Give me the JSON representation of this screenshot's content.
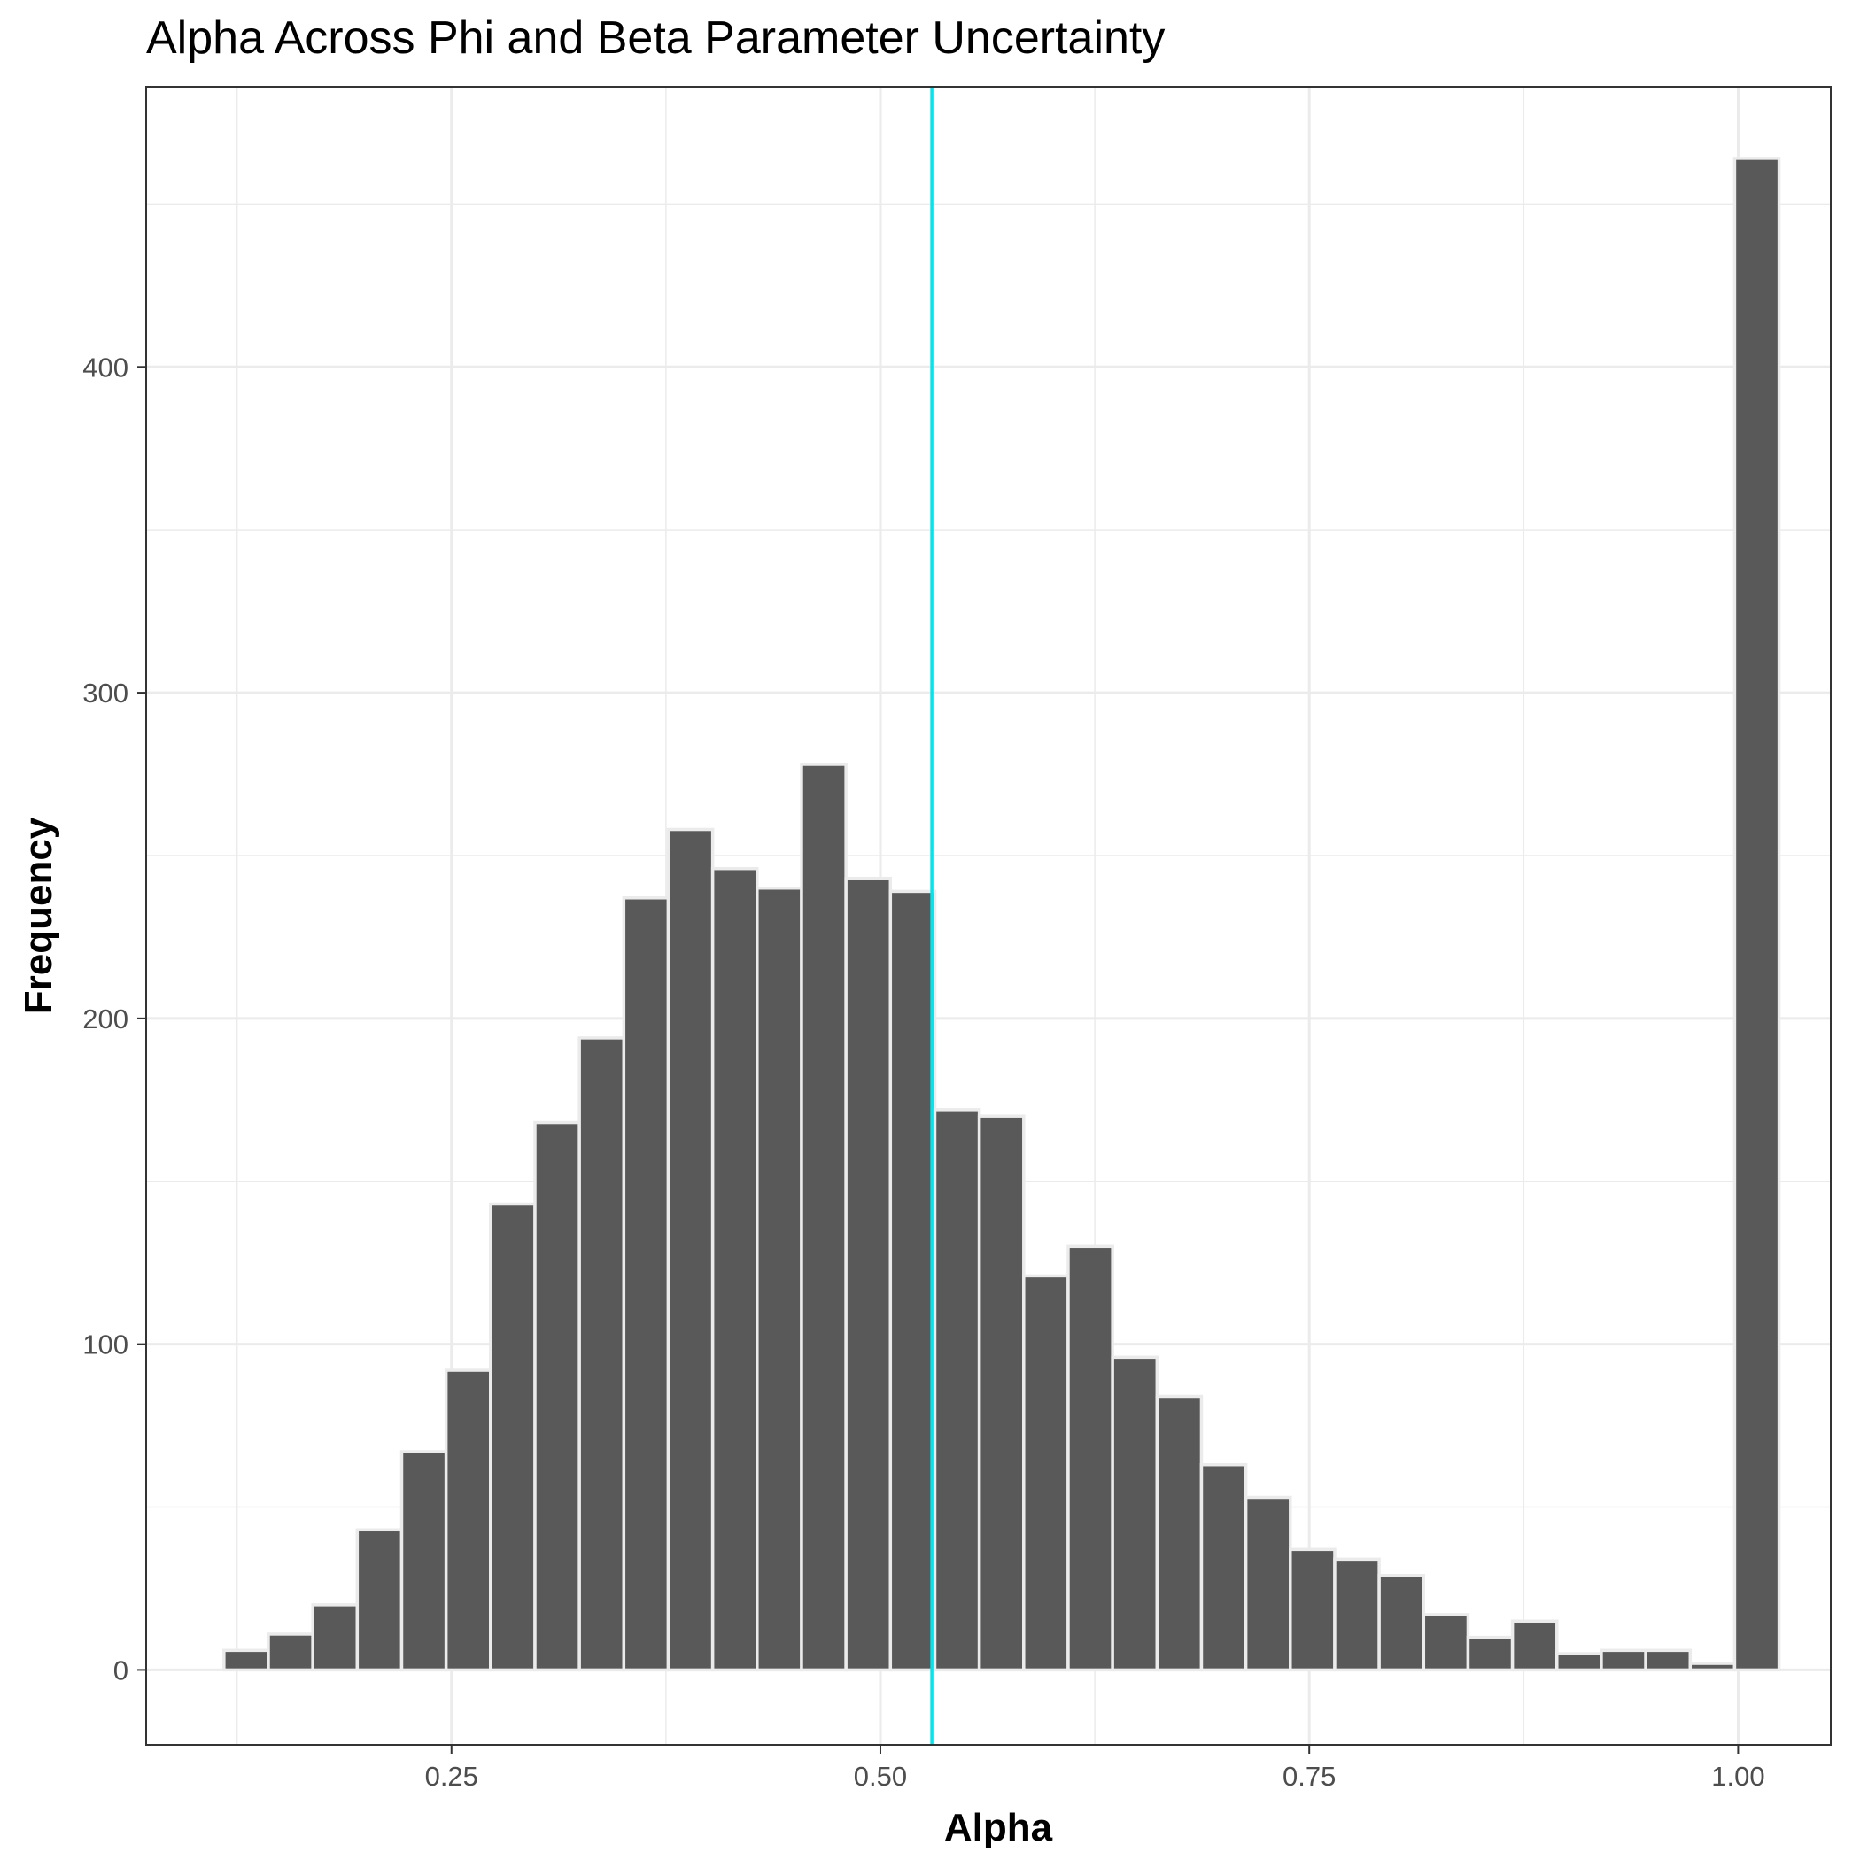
{
  "chart_data": {
    "type": "bar",
    "title": "Alpha Across Phi and Beta Parameter Uncertainty",
    "xlabel": "Alpha",
    "ylabel": "Frequency",
    "xlim": [
      0.072,
      1.054
    ],
    "ylim": [
      -23,
      486
    ],
    "x_ticks": [
      0.25,
      0.5,
      0.75,
      1.0
    ],
    "x_tick_labels": [
      "0.25",
      "0.50",
      "0.75",
      "1.00"
    ],
    "y_ticks": [
      0,
      100,
      200,
      300,
      400
    ],
    "y_tick_labels": [
      "0",
      "100",
      "200",
      "300",
      "400"
    ],
    "grid": true,
    "legend": "none",
    "bin_width": 0.0259,
    "bin_centers": [
      0.1303,
      0.1562,
      0.1821,
      0.208,
      0.2339,
      0.2598,
      0.2857,
      0.3116,
      0.3375,
      0.3634,
      0.3893,
      0.4152,
      0.4411,
      0.467,
      0.4929,
      0.5188,
      0.5447,
      0.5706,
      0.5965,
      0.6224,
      0.6483,
      0.6742,
      0.7001,
      0.726,
      0.7519,
      0.7778,
      0.8037,
      0.8296,
      0.8555,
      0.8814,
      0.9073,
      0.9332,
      0.9591,
      0.985,
      1.0109
    ],
    "values": [
      6,
      11,
      20,
      43,
      67,
      92,
      143,
      168,
      194,
      237,
      258,
      246,
      240,
      278,
      243,
      239,
      172,
      170,
      121,
      130,
      96,
      84,
      63,
      53,
      37,
      34,
      29,
      17,
      10,
      15,
      5,
      6,
      6,
      2,
      464
    ],
    "reference_line": {
      "x": 0.53,
      "color": "#00e5ee"
    },
    "colors": {
      "bar_fill": "#595959",
      "bar_outline": "#ebebeb",
      "grid": "#ebebeb",
      "panel_border": "#333333"
    }
  }
}
